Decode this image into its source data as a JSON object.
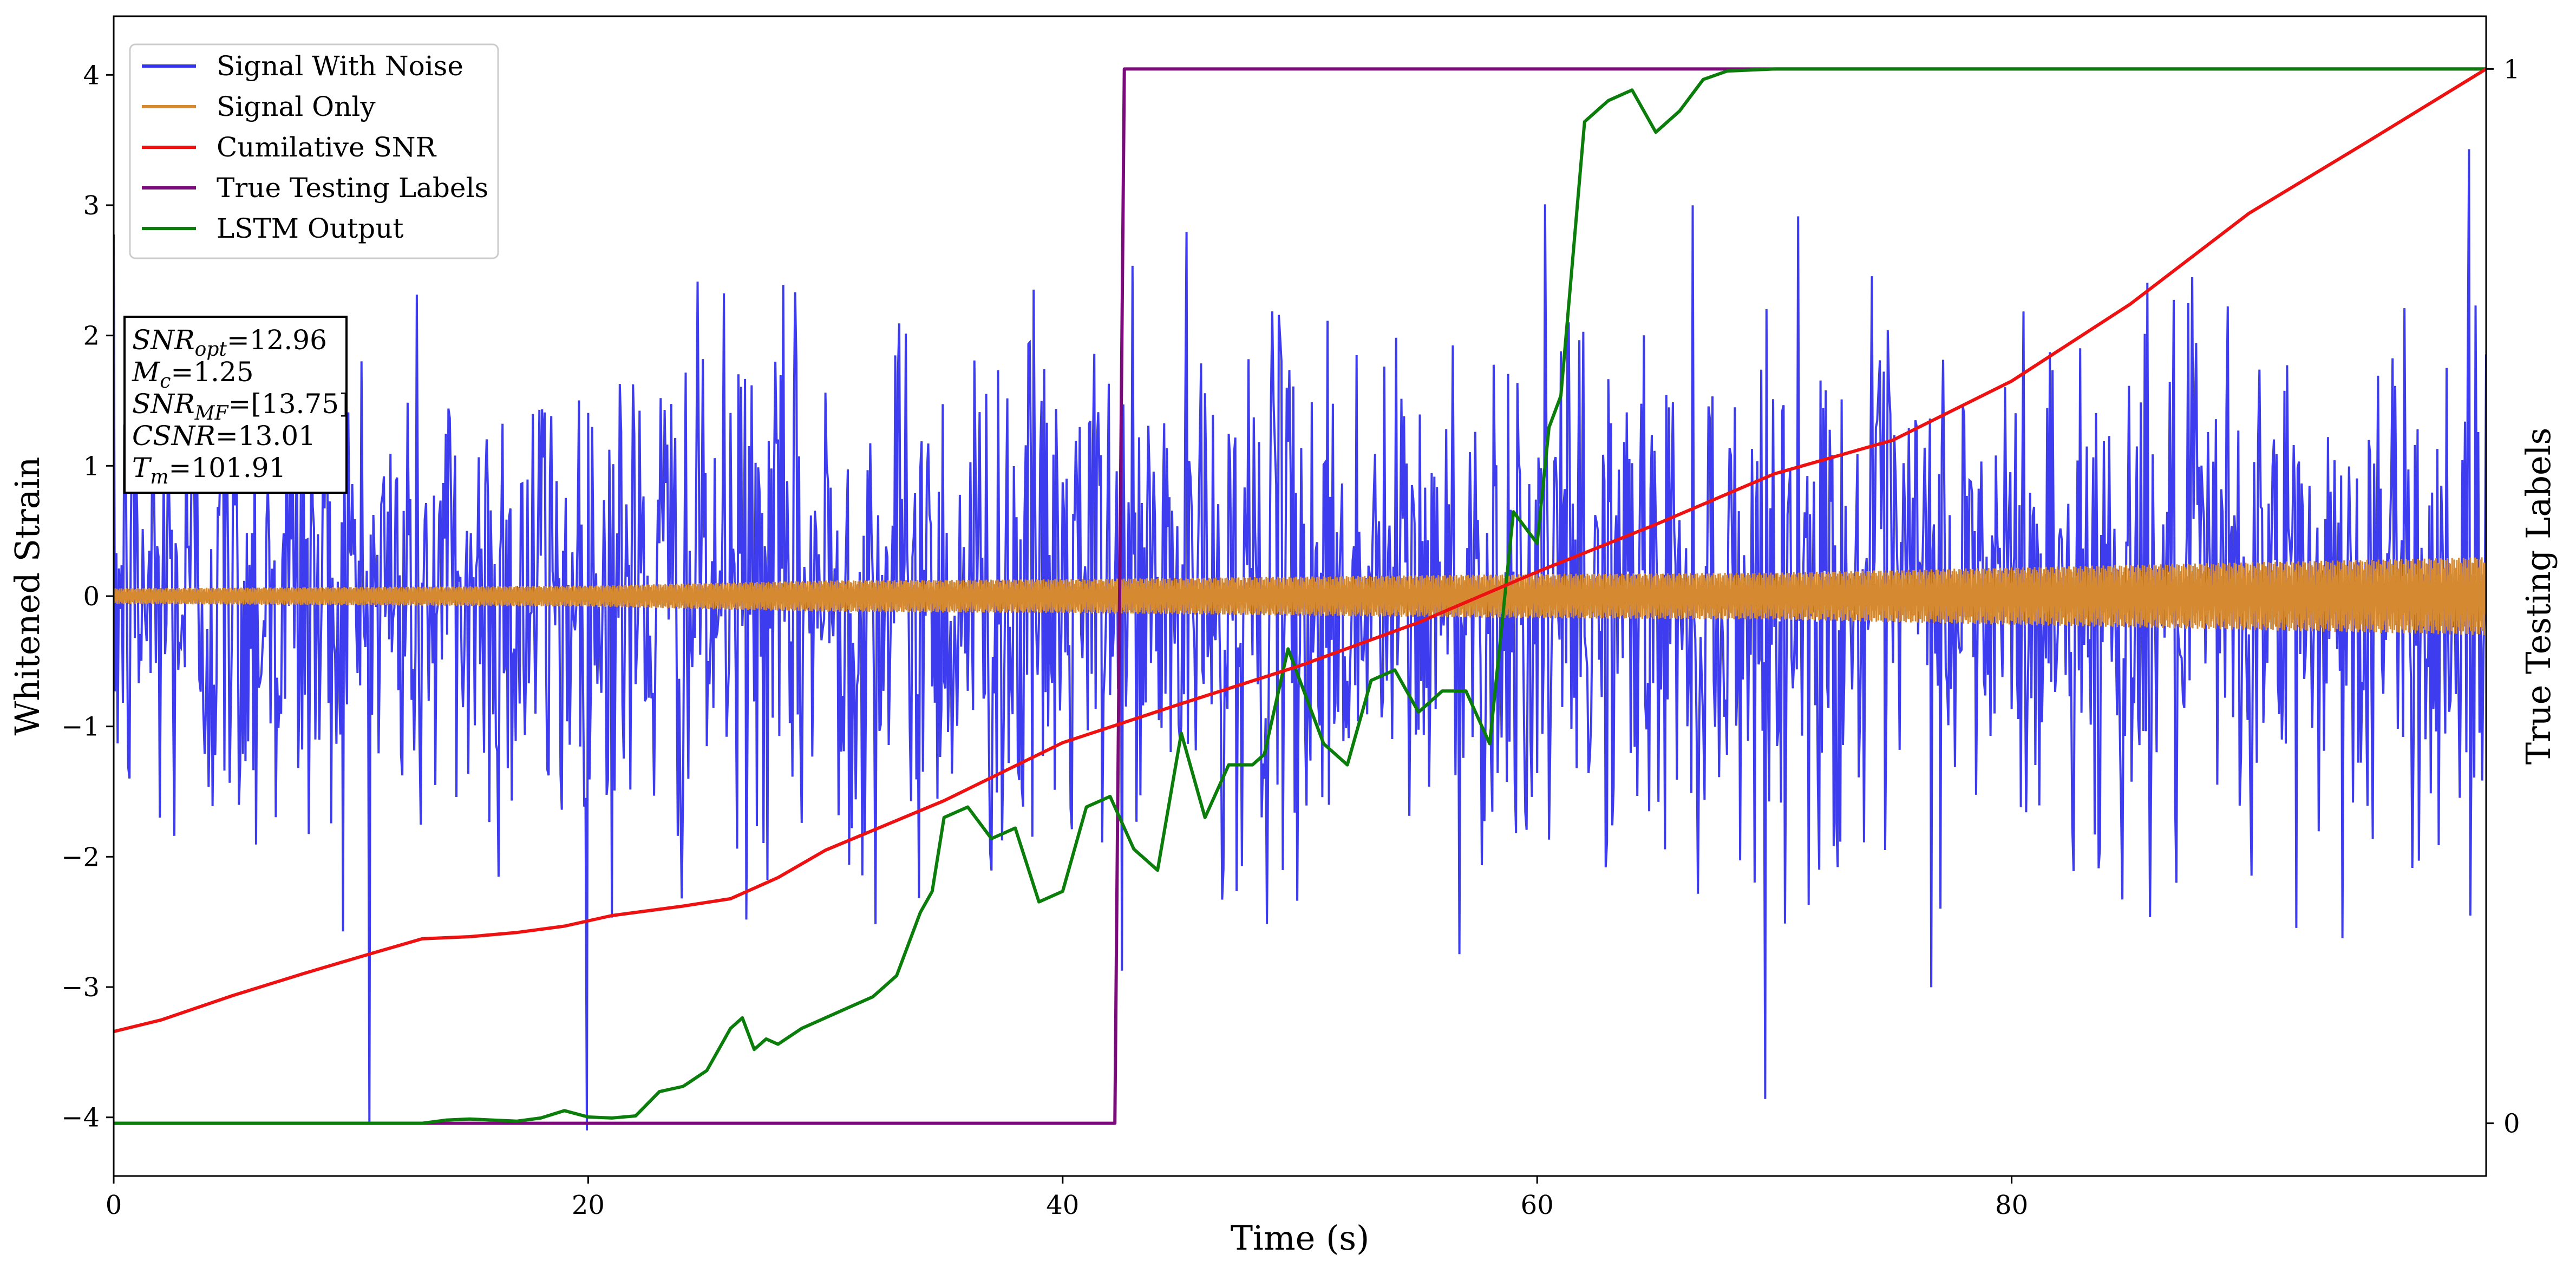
{
  "chart_data": {
    "type": "line",
    "xlabel": "Time (s)",
    "ylabel": "Whitened Strain",
    "ylabel_right": "True Testing Labels",
    "xlim": [
      0,
      100
    ],
    "ylim": [
      -4.45,
      4.45
    ],
    "ylim_right": [
      -0.05,
      1.05
    ],
    "xticks": [
      0,
      20,
      40,
      60,
      80
    ],
    "yticks": [
      -4,
      -3,
      -2,
      -1,
      0,
      1,
      2,
      3,
      4
    ],
    "yticks_right": [
      0,
      1
    ],
    "legend_position": "upper-left",
    "info_box": {
      "position": "left",
      "lines": [
        {
          "label": "SNR",
          "sub": "opt",
          "value": "=12.96"
        },
        {
          "label": "M",
          "sub": "c",
          "value": "=1.25"
        },
        {
          "label": "SNR",
          "sub": "MF",
          "value": "=[13.75]"
        },
        {
          "label": "CSNR",
          "sub": "",
          "value": "=13.01"
        },
        {
          "label": "T",
          "sub": "m",
          "value": "=101.91"
        }
      ]
    },
    "series": [
      {
        "name": "Signal With Noise",
        "color": "#3333ee",
        "axis": "left",
        "kind": "noise",
        "amplitude_envelope": {
          "x": [
            0,
            100
          ],
          "y": [
            1.0,
            1.0
          ]
        },
        "observed_peak_range": [
          -4.1,
          3.9
        ]
      },
      {
        "name": "Signal Only",
        "color": "#d58a32",
        "axis": "left",
        "kind": "oscillation",
        "amplitude_envelope": {
          "x": [
            0,
            10,
            20,
            25,
            30,
            40,
            50,
            60,
            70,
            75,
            80,
            90,
            100
          ],
          "y": [
            0.06,
            0.07,
            0.08,
            0.1,
            0.12,
            0.13,
            0.15,
            0.17,
            0.18,
            0.2,
            0.22,
            0.26,
            0.3
          ]
        }
      },
      {
        "name": "Cumilative SNR",
        "color": "#ee1111",
        "axis": "right",
        "x": [
          0,
          2,
          5,
          8,
          11,
          13,
          15,
          17,
          19,
          21,
          24,
          26,
          28,
          30,
          35,
          40,
          45,
          50,
          55,
          60,
          65,
          70,
          75,
          80,
          85,
          90,
          95,
          100
        ],
        "y": [
          0.087,
          0.098,
          0.121,
          0.142,
          0.162,
          0.175,
          0.177,
          0.181,
          0.187,
          0.197,
          0.206,
          0.213,
          0.233,
          0.259,
          0.306,
          0.361,
          0.398,
          0.434,
          0.475,
          0.523,
          0.568,
          0.616,
          0.648,
          0.704,
          0.777,
          0.863,
          0.931,
          1.0
        ]
      },
      {
        "name": "True Testing Labels",
        "color": "#7b0a7b",
        "axis": "right",
        "x": [
          0,
          42.2,
          42.6,
          100
        ],
        "y": [
          0,
          0,
          1,
          1
        ]
      },
      {
        "name": "LSTM Output",
        "color": "#0a7d0a",
        "axis": "right",
        "x": [
          0,
          13,
          14,
          15,
          17,
          18,
          19,
          20,
          21,
          22,
          23,
          24,
          25,
          26,
          26.5,
          27,
          27.5,
          28,
          29,
          30,
          31,
          32,
          33,
          34,
          34.5,
          35,
          36,
          37,
          38,
          39,
          40,
          41,
          42,
          43,
          44,
          45,
          46,
          47,
          48,
          48.5,
          49.5,
          50,
          51,
          52,
          53,
          54,
          55,
          56,
          57,
          58,
          59,
          60,
          60.5,
          61,
          62,
          63,
          64,
          65,
          66,
          67,
          68,
          70,
          72,
          75,
          80,
          100
        ],
        "y": [
          0,
          0,
          0.003,
          0.004,
          0.002,
          0.005,
          0.012,
          0.006,
          0.005,
          0.007,
          0.03,
          0.035,
          0.05,
          0.09,
          0.1,
          0.07,
          0.08,
          0.075,
          0.09,
          0.1,
          0.11,
          0.12,
          0.14,
          0.2,
          0.22,
          0.29,
          0.3,
          0.27,
          0.28,
          0.21,
          0.22,
          0.3,
          0.31,
          0.26,
          0.24,
          0.37,
          0.29,
          0.34,
          0.34,
          0.35,
          0.45,
          0.42,
          0.36,
          0.34,
          0.42,
          0.43,
          0.39,
          0.41,
          0.41,
          0.36,
          0.58,
          0.55,
          0.66,
          0.69,
          0.95,
          0.97,
          0.98,
          0.94,
          0.96,
          0.99,
          0.998,
          1.0,
          1.0,
          1.0,
          1.0,
          1.0
        ]
      }
    ]
  }
}
